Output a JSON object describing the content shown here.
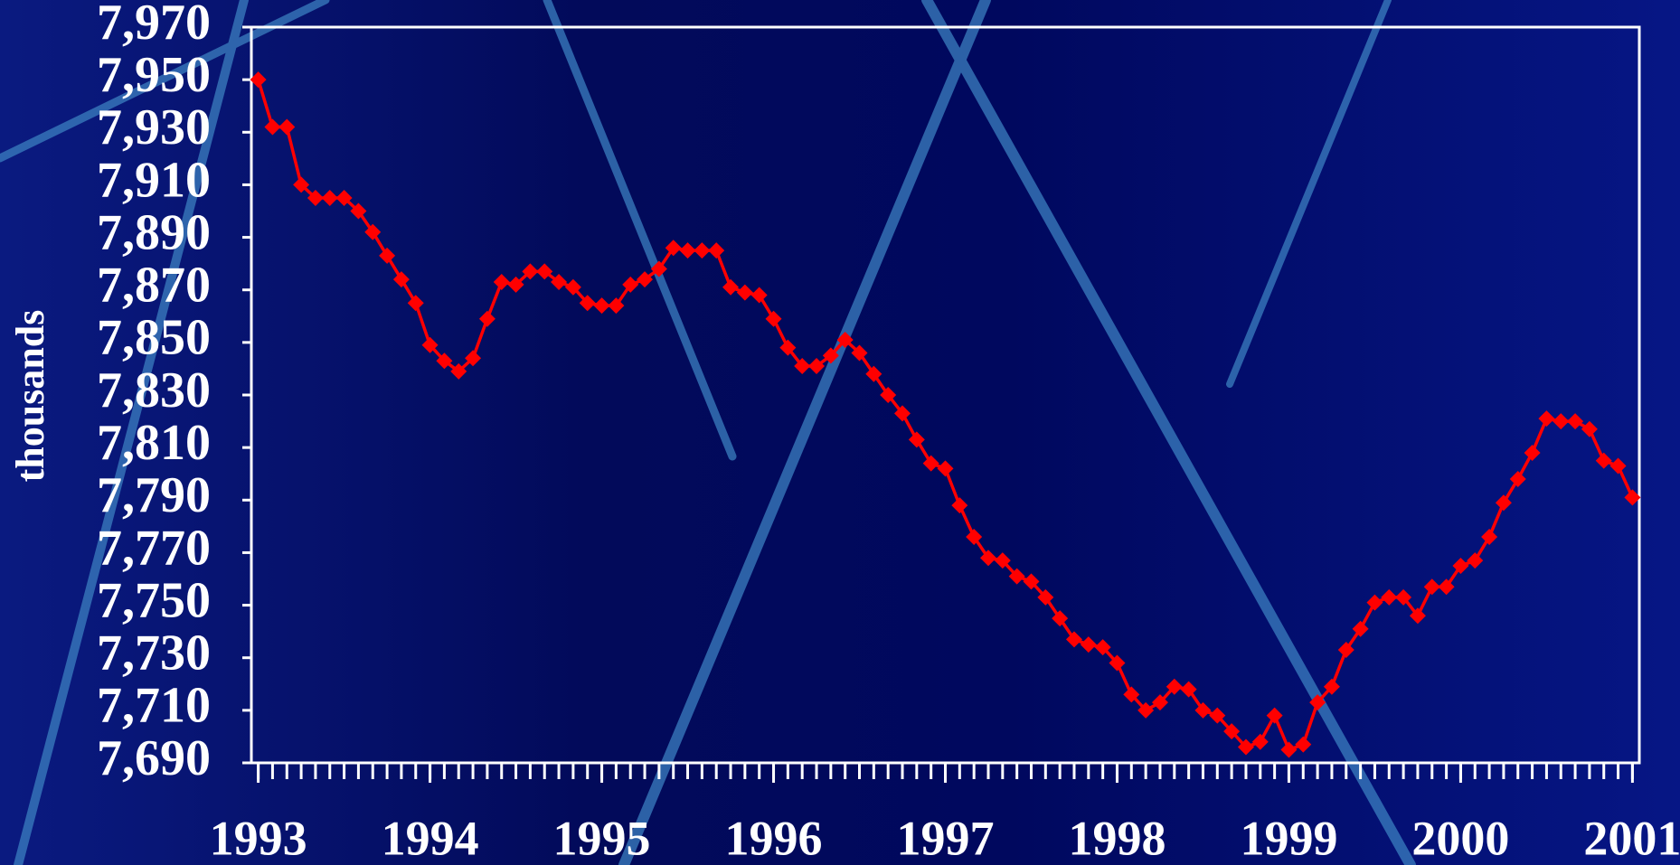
{
  "chart_data": {
    "type": "line",
    "ylabel": "thousands",
    "x": [
      1993,
      1993.0833,
      1993.1667,
      1993.25,
      1993.3333,
      1993.4167,
      1993.5,
      1993.5833,
      1993.6667,
      1993.75,
      1993.8333,
      1993.9167,
      1994,
      1994.0833,
      1994.1667,
      1994.25,
      1994.3333,
      1994.4167,
      1994.5,
      1994.5833,
      1994.6667,
      1994.75,
      1994.8333,
      1994.9167,
      1995,
      1995.0833,
      1995.1667,
      1995.25,
      1995.3333,
      1995.4167,
      1995.5,
      1995.5833,
      1995.6667,
      1995.75,
      1995.8333,
      1995.9167,
      1996,
      1996.0833,
      1996.1667,
      1996.25,
      1996.3333,
      1996.4167,
      1996.5,
      1996.5833,
      1996.6667,
      1996.75,
      1996.8333,
      1996.9167,
      1997,
      1997.0833,
      1997.1667,
      1997.25,
      1997.3333,
      1997.4167,
      1997.5,
      1997.5833,
      1997.6667,
      1997.75,
      1997.8333,
      1997.9167,
      1998,
      1998.0833,
      1998.1667,
      1998.25,
      1998.3333,
      1998.4167,
      1998.5,
      1998.5833,
      1998.6667,
      1998.75,
      1998.8333,
      1998.9167,
      1999,
      1999.0833,
      1999.1667,
      1999.25,
      1999.3333,
      1999.4167,
      1999.5,
      1999.5833,
      1999.6667,
      1999.75,
      1999.8333,
      1999.9167,
      2000,
      2000.0833,
      2000.1667,
      2000.25,
      2000.3333,
      2000.4167,
      2000.5,
      2000.5833,
      2000.6667,
      2000.75,
      2000.8333,
      2000.9167,
      2001
    ],
    "series": [
      {
        "color": "#ff0000",
        "values": [
          7950,
          7932,
          7932,
          7910,
          7905,
          7905,
          7905,
          7900,
          7892,
          7883,
          7874,
          7865,
          7849,
          7843,
          7839,
          7844,
          7859,
          7873,
          7872,
          7877,
          7877,
          7873,
          7871,
          7865,
          7864,
          7864,
          7872,
          7874,
          7878,
          7886,
          7885,
          7885,
          7885,
          7871,
          7869,
          7868,
          7859,
          7848,
          7841,
          7841,
          7845,
          7851,
          7846,
          7838,
          7830,
          7823,
          7813,
          7804,
          7802,
          7788,
          7776,
          7768,
          7767,
          7761,
          7759,
          7753,
          7745,
          7737,
          7735,
          7734,
          7728,
          7716,
          7710,
          7713,
          7719,
          7718,
          7710,
          7708,
          7702,
          7696,
          7698,
          7708,
          7695,
          7697,
          7713,
          7719,
          7733,
          7741,
          7751,
          7753,
          7753,
          7746,
          7757,
          7757,
          7765,
          7767,
          7776,
          7789,
          7798,
          7808,
          7821,
          7820,
          7820,
          7817,
          7805,
          7803,
          7791
        ]
      }
    ],
    "xlim": [
      1992.96,
      2001.04
    ],
    "xticks": [
      1993,
      1994,
      1995,
      1996,
      1997,
      1998,
      1999,
      2000,
      2001
    ],
    "ylim": [
      7690,
      7970
    ],
    "yticks": [
      {
        "value": 7690,
        "label": "7,690"
      },
      {
        "value": 7710,
        "label": "7,710"
      },
      {
        "value": 7730,
        "label": "7,730"
      },
      {
        "value": 7750,
        "label": "7,750"
      },
      {
        "value": 7770,
        "label": "7,770"
      },
      {
        "value": 7790,
        "label": "7,790"
      },
      {
        "value": 7810,
        "label": "7,810"
      },
      {
        "value": 7830,
        "label": "7,830"
      },
      {
        "value": 7850,
        "label": "7,850"
      },
      {
        "value": 7870,
        "label": "7,870"
      },
      {
        "value": 7890,
        "label": "7,890"
      },
      {
        "value": 7910,
        "label": "7,910"
      },
      {
        "value": 7930,
        "label": "7,930"
      },
      {
        "value": 7950,
        "label": "7,950"
      },
      {
        "value": 7970,
        "label": "7,970"
      }
    ]
  }
}
